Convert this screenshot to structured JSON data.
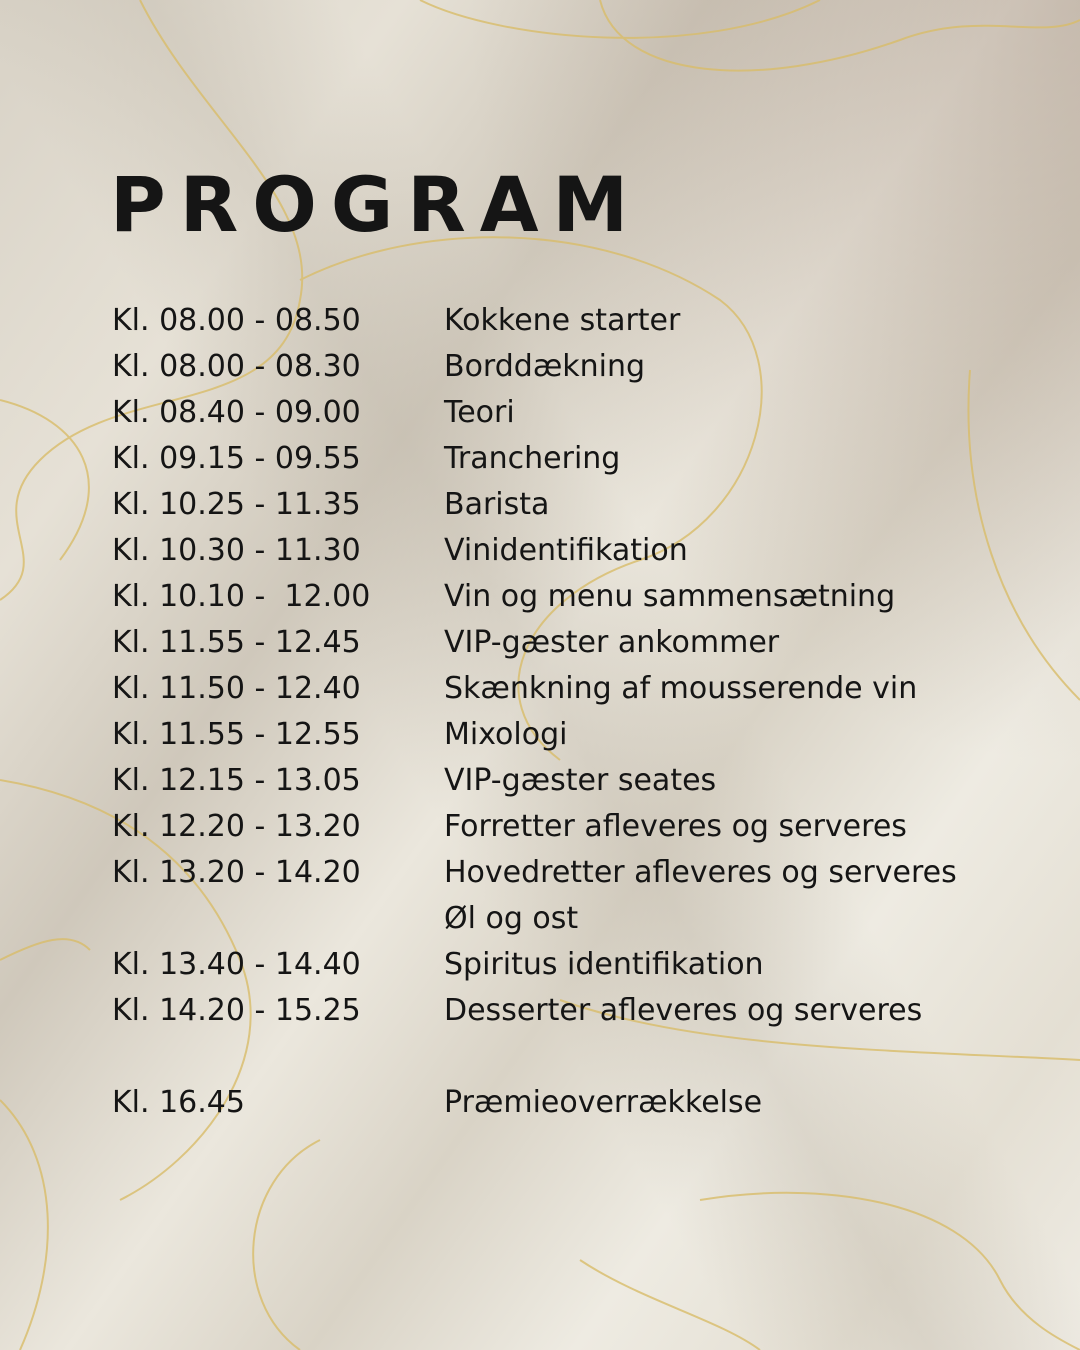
{
  "title": "PROGRAM",
  "colors": {
    "text": "#151515",
    "accent_lines": "#d9bd6a",
    "background": "#e6e1d6"
  },
  "schedule": [
    {
      "time": "Kl. 08.00 - 08.50",
      "activity": "Kokkene starter"
    },
    {
      "time": "Kl. 08.00 - 08.30",
      "activity": "Borddækning"
    },
    {
      "time": "Kl. 08.40 - 09.00",
      "activity": "Teori"
    },
    {
      "time": "Kl. 09.15 - 09.55",
      "activity": "Tranchering"
    },
    {
      "time": "Kl. 10.25 - 11.35",
      "activity": "Barista"
    },
    {
      "time": "Kl. 10.30 - 11.30",
      "activity": "Vinidentifikation"
    },
    {
      "time": "Kl. 10.10 -  12.00",
      "activity": "Vin og menu sammensætning"
    },
    {
      "time": "Kl. 11.55 - 12.45",
      "activity": "VIP-gæster ankommer"
    },
    {
      "time": "Kl. 11.50 - 12.40",
      "activity": "Skænkning af mousserende vin"
    },
    {
      "time": "Kl. 11.55 - 12.55",
      "activity": "Mixologi"
    },
    {
      "time": "Kl. 12.15 - 13.05",
      "activity": "VIP-gæster seates"
    },
    {
      "time": "Kl. 12.20 - 13.20",
      "activity": "Forretter afleveres og serveres"
    },
    {
      "time": "Kl. 13.20 - 14.20",
      "activity": "Hovedretter afleveres og serveres"
    },
    {
      "time": "",
      "activity": "Øl og ost"
    },
    {
      "time": "Kl. 13.40 - 14.40",
      "activity": "Spiritus identifikation"
    },
    {
      "time": "Kl. 14.20 - 15.25",
      "activity": "Desserter afleveres og serveres"
    },
    {
      "time": "",
      "activity": ""
    },
    {
      "time": "Kl. 16.45",
      "activity": "Præmieoverrækkelse"
    }
  ]
}
